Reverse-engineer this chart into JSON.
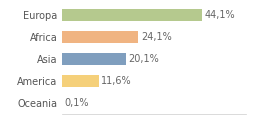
{
  "categories": [
    "Europa",
    "Africa",
    "Asia",
    "America",
    "Oceania"
  ],
  "values": [
    44.1,
    24.1,
    20.1,
    11.6,
    0.1
  ],
  "labels": [
    "44,1%",
    "24,1%",
    "20,1%",
    "11,6%",
    "0,1%"
  ],
  "bar_colors": [
    "#b5c98e",
    "#f0b482",
    "#7f9ebe",
    "#f5d07a",
    "#f5f5f5"
  ],
  "background_color": "#ffffff",
  "xlim": [
    0,
    58
  ],
  "label_fontsize": 7.0,
  "tick_fontsize": 7.0,
  "bar_height": 0.55
}
